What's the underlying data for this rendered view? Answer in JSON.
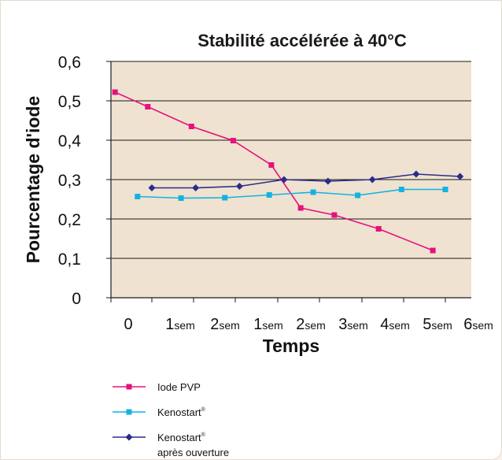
{
  "chart_data": {
    "type": "line",
    "title": "Stabilité accélérée à 40°C",
    "xlabel": "Temps",
    "ylabel": "Pourcentage d'iode",
    "ylim": [
      0,
      0.6
    ],
    "y_ticks": [
      "0",
      "0,1",
      "0,2",
      "0,3",
      "0,4",
      "0,5",
      "0,6"
    ],
    "categories": [
      {
        "num": "0",
        "unit": ""
      },
      {
        "num": "1",
        "unit": "sem"
      },
      {
        "num": "2",
        "unit": "sem"
      },
      {
        "num": "1",
        "unit": "sem"
      },
      {
        "num": "2",
        "unit": "sem"
      },
      {
        "num": "3",
        "unit": "sem"
      },
      {
        "num": "4",
        "unit": "sem"
      },
      {
        "num": "5",
        "unit": "sem"
      },
      {
        "num": "6",
        "unit": "sem"
      }
    ],
    "grid": true,
    "legend_placement": "bottom-left",
    "colors": {
      "plot_background": "#efe2d0",
      "iode_pvp": "#e6117d",
      "kenostart": "#14b2e2",
      "kenostart_ouvert": "#2a2c8a"
    },
    "series": [
      {
        "name": "Iode PVP",
        "marker": "square",
        "color": "#e6117d",
        "points": [
          {
            "x": 0.1,
            "y": 0.522
          },
          {
            "x": 0.9,
            "y": 0.485
          },
          {
            "x": 1.95,
            "y": 0.435
          },
          {
            "x": 2.95,
            "y": 0.399
          },
          {
            "x": 3.85,
            "y": 0.337
          },
          {
            "x": 4.55,
            "y": 0.228
          },
          {
            "x": 5.35,
            "y": 0.21
          },
          {
            "x": 6.4,
            "y": 0.175
          },
          {
            "x": 7.7,
            "y": 0.12
          }
        ]
      },
      {
        "name": "Kenostart",
        "name_superscript": "®",
        "marker": "square",
        "color": "#14b2e2",
        "points": [
          {
            "x": 0.65,
            "y": 0.257
          },
          {
            "x": 1.7,
            "y": 0.253
          },
          {
            "x": 2.75,
            "y": 0.254
          },
          {
            "x": 3.8,
            "y": 0.261
          },
          {
            "x": 4.85,
            "y": 0.268
          },
          {
            "x": 5.9,
            "y": 0.26
          },
          {
            "x": 6.95,
            "y": 0.275
          },
          {
            "x": 8.0,
            "y": 0.275
          }
        ]
      },
      {
        "name": "Kenostart",
        "name_superscript": "®",
        "name_line2": "après ouverture",
        "marker": "diamond",
        "color": "#2a2c8a",
        "points": [
          {
            "x": 1.0,
            "y": 0.279
          },
          {
            "x": 2.05,
            "y": 0.279
          },
          {
            "x": 3.1,
            "y": 0.283
          },
          {
            "x": 4.15,
            "y": 0.3
          },
          {
            "x": 5.2,
            "y": 0.296
          },
          {
            "x": 6.25,
            "y": 0.3
          },
          {
            "x": 7.3,
            "y": 0.314
          },
          {
            "x": 8.35,
            "y": 0.308
          }
        ]
      }
    ]
  }
}
